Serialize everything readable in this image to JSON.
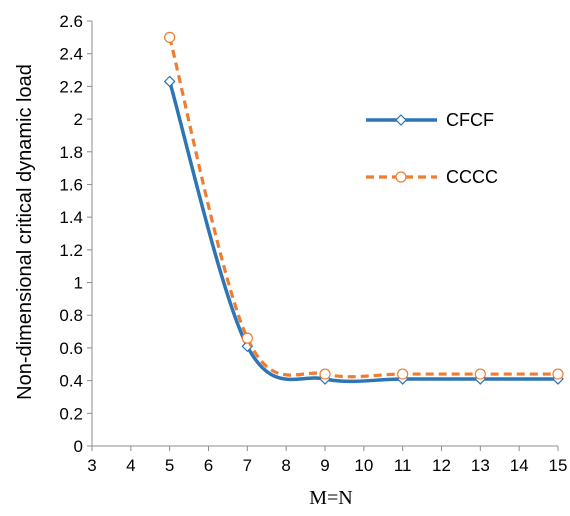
{
  "chart_data": {
    "type": "line",
    "title": "",
    "xlabel": "M=N",
    "ylabel": "Non-dimensional critical dynamic load",
    "xlim": [
      3,
      15
    ],
    "ylim": [
      0,
      2.6
    ],
    "x_ticks": [
      3,
      4,
      5,
      6,
      7,
      8,
      9,
      10,
      11,
      12,
      13,
      14,
      15
    ],
    "y_ticks": [
      0,
      0.2,
      0.4,
      0.6,
      0.8,
      1,
      1.2,
      1.4,
      1.6,
      1.8,
      2,
      2.2,
      2.4,
      2.6
    ],
    "grid": false,
    "legend_position": "right",
    "smooth": true,
    "series": [
      {
        "name": "CFCF",
        "color": "#2e75b6",
        "line_style": "solid",
        "marker": "diamond",
        "x": [
          5,
          7,
          9,
          11,
          13,
          15
        ],
        "y": [
          2.23,
          0.61,
          0.41,
          0.41,
          0.41,
          0.41
        ]
      },
      {
        "name": "CCCC",
        "color": "#ed7d31",
        "line_style": "dashed",
        "marker": "circle",
        "x": [
          5,
          7,
          9,
          11,
          13,
          15
        ],
        "y": [
          2.5,
          0.66,
          0.44,
          0.44,
          0.44,
          0.44
        ]
      }
    ]
  }
}
